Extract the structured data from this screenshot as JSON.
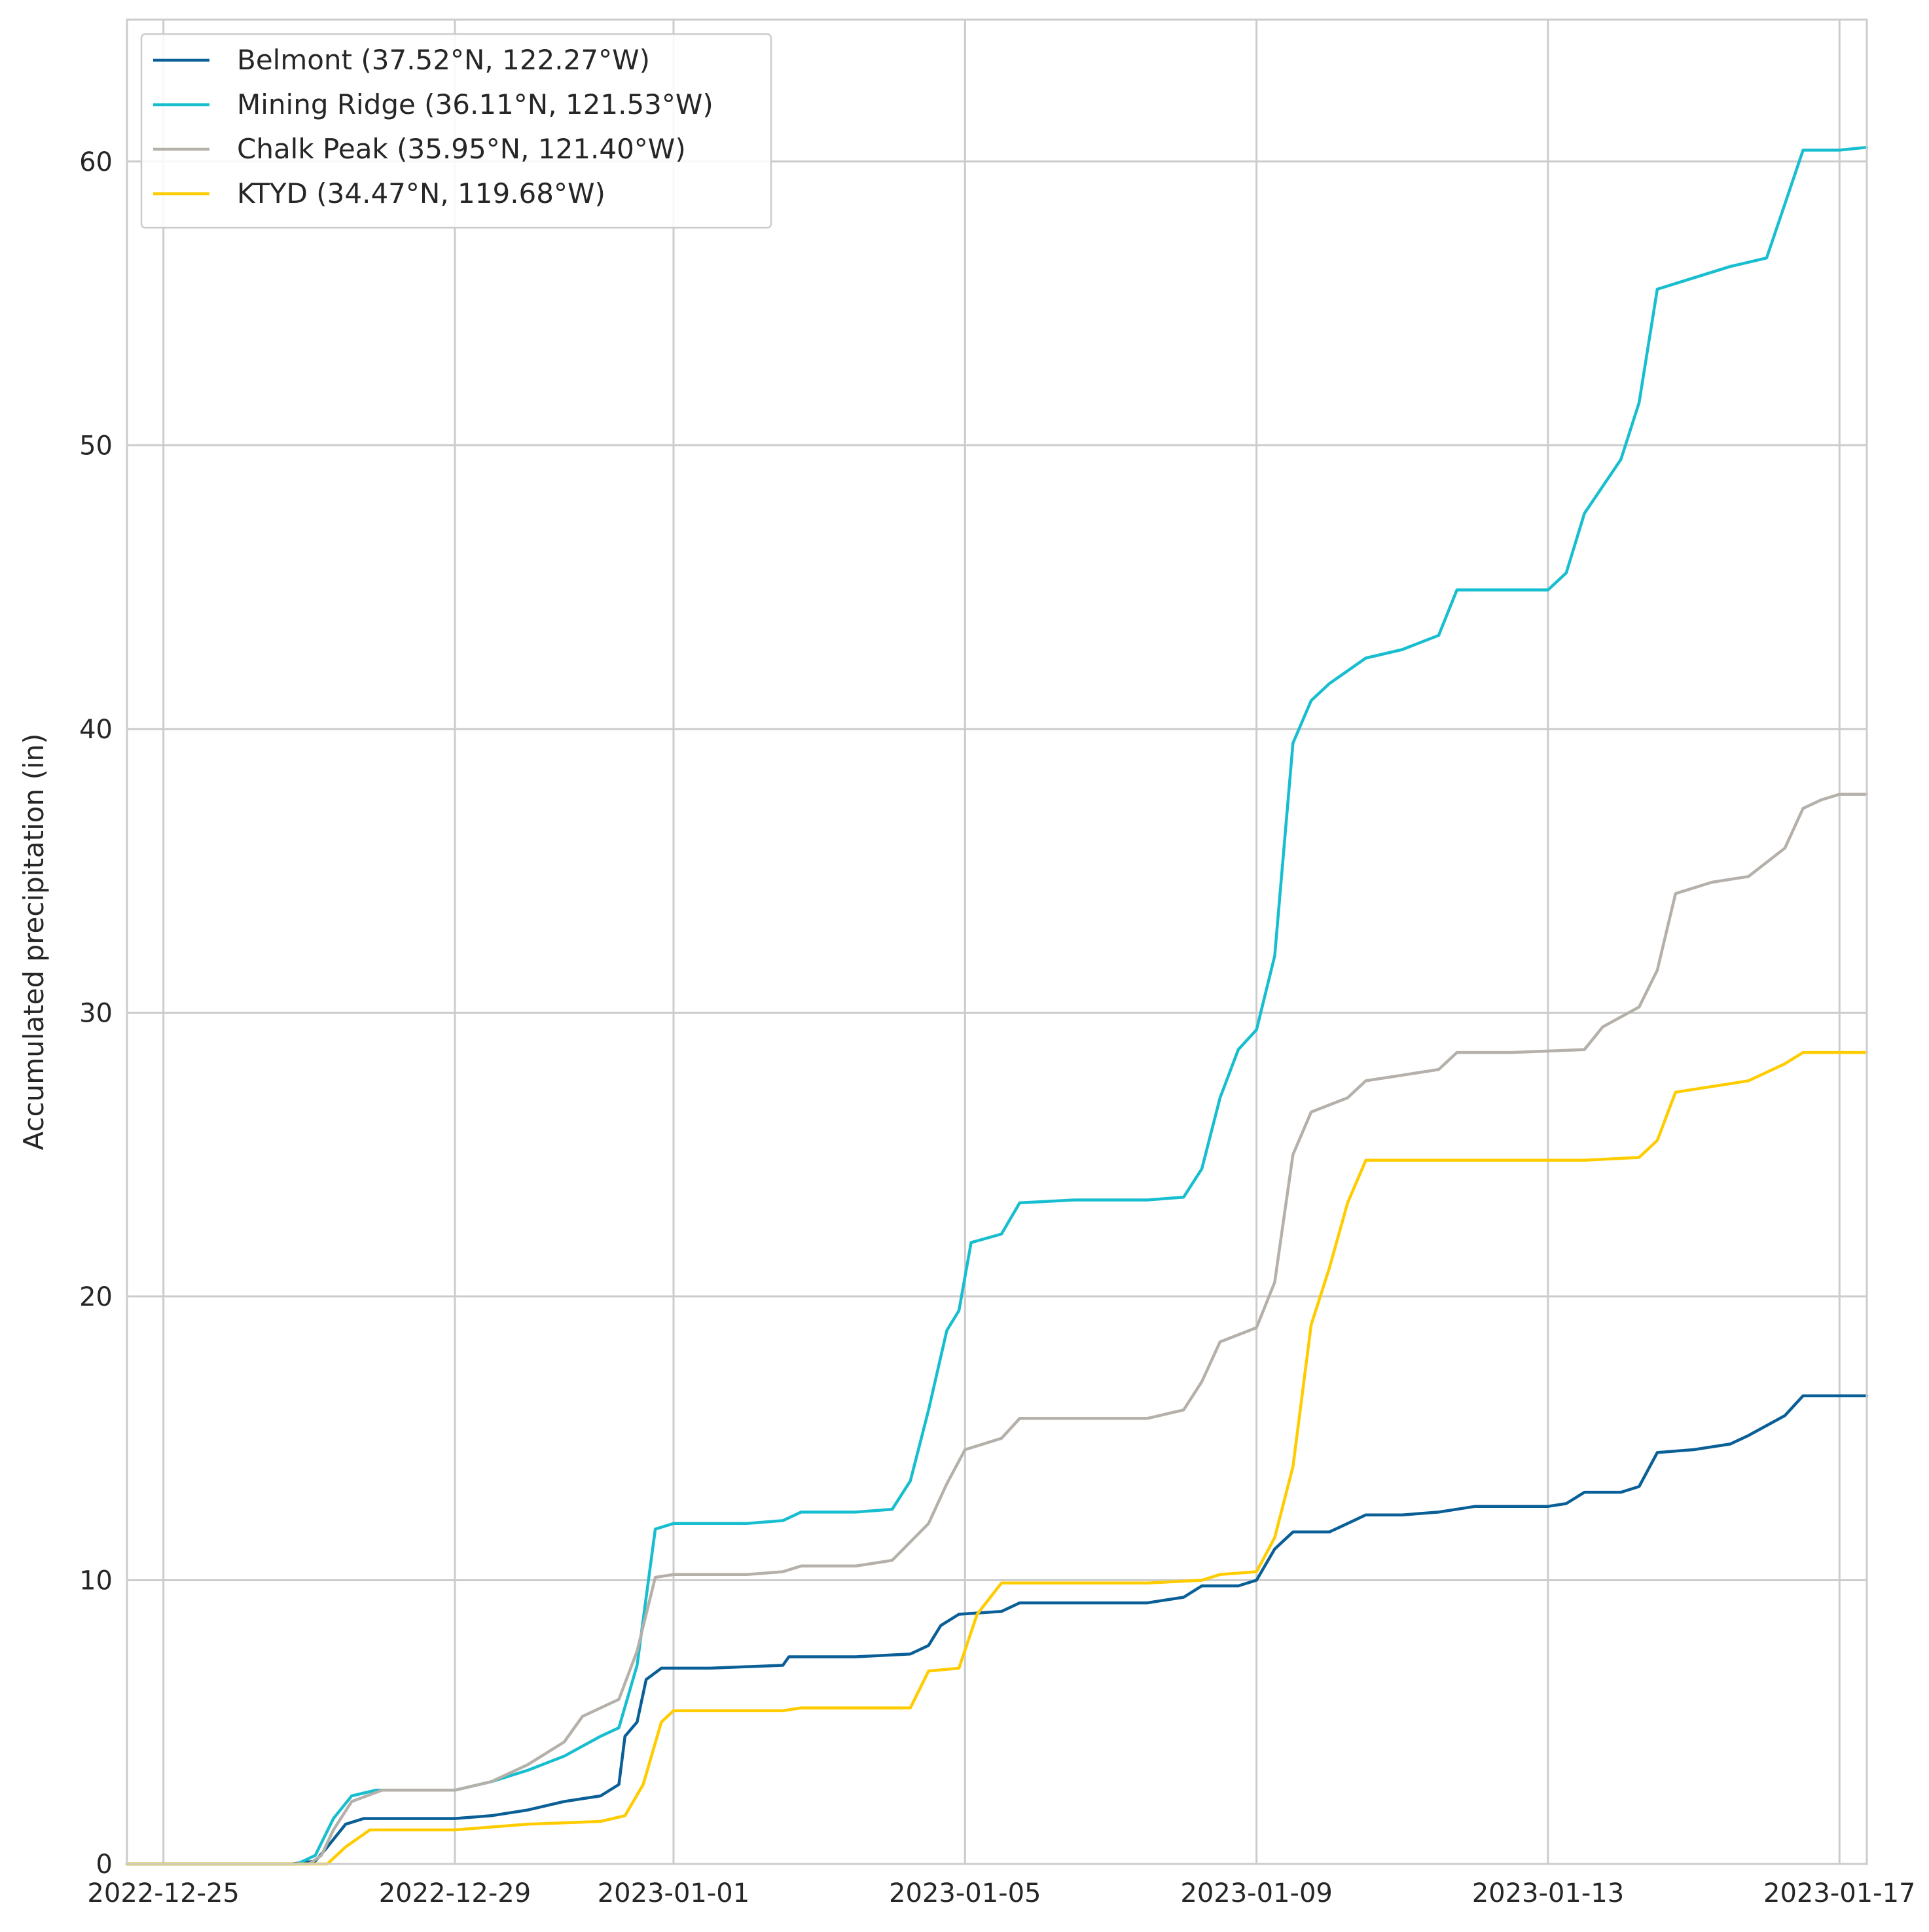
{
  "chart_data": {
    "type": "line",
    "title": "",
    "xlabel": "",
    "ylabel": "Accumulated precipitation (in)",
    "xlim": [
      "2022-12-24T12:00",
      "2023-01-17T09:00"
    ],
    "ylim": [
      0,
      65
    ],
    "grid": true,
    "legend_position": "top-left",
    "x_ticks": [
      "2022-12-25",
      "2022-12-29",
      "2023-01-01",
      "2023-01-05",
      "2023-01-09",
      "2023-01-13",
      "2023-01-17"
    ],
    "y_ticks": [
      0,
      10,
      20,
      30,
      40,
      50,
      60
    ],
    "series": [
      {
        "name": "Belmont (37.52°N, 122.27°W)",
        "color": "#0a5f97",
        "points": [
          [
            "2022-12-24T12:00",
            0
          ],
          [
            "2022-12-26T18:00",
            0
          ],
          [
            "2022-12-27T02:00",
            0.1
          ],
          [
            "2022-12-27T06:00",
            0.6
          ],
          [
            "2022-12-27T12:00",
            1.4
          ],
          [
            "2022-12-27T18:00",
            1.6
          ],
          [
            "2022-12-29T00:00",
            1.6
          ],
          [
            "2022-12-29T12:00",
            1.7
          ],
          [
            "2022-12-30T00:00",
            1.9
          ],
          [
            "2022-12-30T12:00",
            2.2
          ],
          [
            "2022-12-31T00:00",
            2.4
          ],
          [
            "2022-12-31T06:00",
            2.8
          ],
          [
            "2022-12-31T08:00",
            4.5
          ],
          [
            "2022-12-31T12:00",
            5.0
          ],
          [
            "2022-12-31T15:00",
            6.5
          ],
          [
            "2022-12-31T20:00",
            6.9
          ],
          [
            "2023-01-01T12:00",
            6.9
          ],
          [
            "2023-01-02T12:00",
            7.0
          ],
          [
            "2023-01-02T14:00",
            7.3
          ],
          [
            "2023-01-03T12:00",
            7.3
          ],
          [
            "2023-01-04T06:00",
            7.4
          ],
          [
            "2023-01-04T12:00",
            7.7
          ],
          [
            "2023-01-04T16:00",
            8.4
          ],
          [
            "2023-01-04T22:00",
            8.8
          ],
          [
            "2023-01-05T12:00",
            8.9
          ],
          [
            "2023-01-05T18:00",
            9.2
          ],
          [
            "2023-01-06T12:00",
            9.2
          ],
          [
            "2023-01-07T12:00",
            9.2
          ],
          [
            "2023-01-08T00:00",
            9.4
          ],
          [
            "2023-01-08T06:00",
            9.8
          ],
          [
            "2023-01-08T18:00",
            9.8
          ],
          [
            "2023-01-09T00:00",
            10.0
          ],
          [
            "2023-01-09T06:00",
            11.1
          ],
          [
            "2023-01-09T12:00",
            11.7
          ],
          [
            "2023-01-10T00:00",
            11.7
          ],
          [
            "2023-01-10T06:00",
            12.0
          ],
          [
            "2023-01-10T12:00",
            12.3
          ],
          [
            "2023-01-11T00:00",
            12.3
          ],
          [
            "2023-01-11T12:00",
            12.4
          ],
          [
            "2023-01-12T00:00",
            12.6
          ],
          [
            "2023-01-13T00:00",
            12.6
          ],
          [
            "2023-01-13T06:00",
            12.7
          ],
          [
            "2023-01-13T12:00",
            13.1
          ],
          [
            "2023-01-14T00:00",
            13.1
          ],
          [
            "2023-01-14T06:00",
            13.3
          ],
          [
            "2023-01-14T12:00",
            14.5
          ],
          [
            "2023-01-15T00:00",
            14.6
          ],
          [
            "2023-01-15T12:00",
            14.8
          ],
          [
            "2023-01-15T18:00",
            15.1
          ],
          [
            "2023-01-16T06:00",
            15.8
          ],
          [
            "2023-01-16T12:00",
            16.5
          ],
          [
            "2023-01-17T00:00",
            16.5
          ],
          [
            "2023-01-17T09:00",
            16.5
          ]
        ]
      },
      {
        "name": "Mining Ridge (36.11°N, 121.53°W)",
        "color": "#17becf",
        "points": [
          [
            "2022-12-24T12:00",
            0
          ],
          [
            "2022-12-26T20:00",
            0
          ],
          [
            "2022-12-27T02:00",
            0.3
          ],
          [
            "2022-12-27T08:00",
            1.6
          ],
          [
            "2022-12-27T14:00",
            2.4
          ],
          [
            "2022-12-27T22:00",
            2.6
          ],
          [
            "2022-12-29T00:00",
            2.6
          ],
          [
            "2022-12-29T12:00",
            2.9
          ],
          [
            "2022-12-30T00:00",
            3.3
          ],
          [
            "2022-12-30T12:00",
            3.8
          ],
          [
            "2022-12-31T00:00",
            4.5
          ],
          [
            "2022-12-31T06:00",
            4.8
          ],
          [
            "2022-12-31T12:00",
            7.0
          ],
          [
            "2022-12-31T18:00",
            11.8
          ],
          [
            "2023-01-01T00:00",
            12.0
          ],
          [
            "2023-01-02T00:00",
            12.0
          ],
          [
            "2023-01-02T12:00",
            12.1
          ],
          [
            "2023-01-02T18:00",
            12.4
          ],
          [
            "2023-01-03T12:00",
            12.4
          ],
          [
            "2023-01-04T00:00",
            12.5
          ],
          [
            "2023-01-04T06:00",
            13.5
          ],
          [
            "2023-01-04T12:00",
            16.0
          ],
          [
            "2023-01-04T18:00",
            18.8
          ],
          [
            "2023-01-04T22:00",
            19.5
          ],
          [
            "2023-01-05T02:00",
            21.9
          ],
          [
            "2023-01-05T12:00",
            22.2
          ],
          [
            "2023-01-05T18:00",
            23.3
          ],
          [
            "2023-01-06T12:00",
            23.4
          ],
          [
            "2023-01-07T12:00",
            23.4
          ],
          [
            "2023-01-08T00:00",
            23.5
          ],
          [
            "2023-01-08T06:00",
            24.5
          ],
          [
            "2023-01-08T12:00",
            27.0
          ],
          [
            "2023-01-08T18:00",
            28.7
          ],
          [
            "2023-01-09T00:00",
            29.4
          ],
          [
            "2023-01-09T06:00",
            32.0
          ],
          [
            "2023-01-09T12:00",
            39.5
          ],
          [
            "2023-01-09T18:00",
            41.0
          ],
          [
            "2023-01-10T00:00",
            41.6
          ],
          [
            "2023-01-10T12:00",
            42.5
          ],
          [
            "2023-01-11T00:00",
            42.8
          ],
          [
            "2023-01-11T12:00",
            43.3
          ],
          [
            "2023-01-11T18:00",
            44.9
          ],
          [
            "2023-01-12T12:00",
            44.9
          ],
          [
            "2023-01-13T00:00",
            44.9
          ],
          [
            "2023-01-13T06:00",
            45.5
          ],
          [
            "2023-01-13T12:00",
            47.6
          ],
          [
            "2023-01-14T00:00",
            49.5
          ],
          [
            "2023-01-14T06:00",
            51.5
          ],
          [
            "2023-01-14T12:00",
            55.5
          ],
          [
            "2023-01-14T18:00",
            55.7
          ],
          [
            "2023-01-15T12:00",
            56.3
          ],
          [
            "2023-01-16T00:00",
            56.6
          ],
          [
            "2023-01-16T06:00",
            58.5
          ],
          [
            "2023-01-16T12:00",
            60.4
          ],
          [
            "2023-01-17T00:00",
            60.4
          ],
          [
            "2023-01-17T09:00",
            60.5
          ]
        ]
      },
      {
        "name": "Chalk Peak (35.95°N, 121.40°W)",
        "color": "#b5b0a9",
        "points": [
          [
            "2022-12-24T12:00",
            0
          ],
          [
            "2022-12-27T00:00",
            0
          ],
          [
            "2022-12-27T04:00",
            0.3
          ],
          [
            "2022-12-27T08:00",
            1.2
          ],
          [
            "2022-12-27T14:00",
            2.2
          ],
          [
            "2022-12-28T00:00",
            2.6
          ],
          [
            "2022-12-29T00:00",
            2.6
          ],
          [
            "2022-12-29T12:00",
            2.9
          ],
          [
            "2022-12-30T00:00",
            3.5
          ],
          [
            "2022-12-30T12:00",
            4.3
          ],
          [
            "2022-12-30T18:00",
            5.2
          ],
          [
            "2022-12-31T06:00",
            5.8
          ],
          [
            "2022-12-31T12:00",
            7.5
          ],
          [
            "2022-12-31T18:00",
            10.1
          ],
          [
            "2023-01-01T00:00",
            10.2
          ],
          [
            "2023-01-02T00:00",
            10.2
          ],
          [
            "2023-01-02T12:00",
            10.3
          ],
          [
            "2023-01-02T18:00",
            10.5
          ],
          [
            "2023-01-03T12:00",
            10.5
          ],
          [
            "2023-01-04T00:00",
            10.7
          ],
          [
            "2023-01-04T12:00",
            12.0
          ],
          [
            "2023-01-04T18:00",
            13.4
          ],
          [
            "2023-01-05T00:00",
            14.6
          ],
          [
            "2023-01-05T12:00",
            15.0
          ],
          [
            "2023-01-05T18:00",
            15.7
          ],
          [
            "2023-01-06T12:00",
            15.7
          ],
          [
            "2023-01-07T12:00",
            15.7
          ],
          [
            "2023-01-08T00:00",
            16.0
          ],
          [
            "2023-01-08T06:00",
            17.0
          ],
          [
            "2023-01-08T12:00",
            18.4
          ],
          [
            "2023-01-09T00:00",
            18.9
          ],
          [
            "2023-01-09T06:00",
            20.5
          ],
          [
            "2023-01-09T12:00",
            25.0
          ],
          [
            "2023-01-09T18:00",
            26.5
          ],
          [
            "2023-01-10T06:00",
            27.0
          ],
          [
            "2023-01-10T12:00",
            27.6
          ],
          [
            "2023-01-11T00:00",
            27.8
          ],
          [
            "2023-01-11T12:00",
            28.0
          ],
          [
            "2023-01-11T18:00",
            28.6
          ],
          [
            "2023-01-12T12:00",
            28.6
          ],
          [
            "2023-01-13T12:00",
            28.7
          ],
          [
            "2023-01-13T18:00",
            29.5
          ],
          [
            "2023-01-14T06:00",
            30.2
          ],
          [
            "2023-01-14T12:00",
            31.5
          ],
          [
            "2023-01-14T18:00",
            34.2
          ],
          [
            "2023-01-15T06:00",
            34.6
          ],
          [
            "2023-01-15T18:00",
            34.8
          ],
          [
            "2023-01-16T06:00",
            35.8
          ],
          [
            "2023-01-16T12:00",
            37.2
          ],
          [
            "2023-01-16T18:00",
            37.5
          ],
          [
            "2023-01-17T00:00",
            37.7
          ],
          [
            "2023-01-17T09:00",
            37.7
          ]
        ]
      },
      {
        "name": "KTYD (34.47°N, 119.68°W)",
        "color": "#ffcc00",
        "points": [
          [
            "2022-12-24T12:00",
            0
          ],
          [
            "2022-12-27T06:00",
            0
          ],
          [
            "2022-12-27T12:00",
            0.6
          ],
          [
            "2022-12-27T20:00",
            1.2
          ],
          [
            "2022-12-29T00:00",
            1.2
          ],
          [
            "2022-12-29T12:00",
            1.3
          ],
          [
            "2022-12-30T00:00",
            1.4
          ],
          [
            "2022-12-31T00:00",
            1.5
          ],
          [
            "2022-12-31T08:00",
            1.7
          ],
          [
            "2022-12-31T14:00",
            2.8
          ],
          [
            "2022-12-31T20:00",
            5.0
          ],
          [
            "2023-01-01T00:00",
            5.4
          ],
          [
            "2023-01-02T00:00",
            5.4
          ],
          [
            "2023-01-02T12:00",
            5.4
          ],
          [
            "2023-01-02T18:00",
            5.5
          ],
          [
            "2023-01-03T12:00",
            5.5
          ],
          [
            "2023-01-04T06:00",
            5.5
          ],
          [
            "2023-01-04T12:00",
            6.8
          ],
          [
            "2023-01-04T22:00",
            6.9
          ],
          [
            "2023-01-05T04:00",
            8.8
          ],
          [
            "2023-01-05T12:00",
            9.9
          ],
          [
            "2023-01-06T12:00",
            9.9
          ],
          [
            "2023-01-07T12:00",
            9.9
          ],
          [
            "2023-01-08T06:00",
            10.0
          ],
          [
            "2023-01-08T12:00",
            10.2
          ],
          [
            "2023-01-09T00:00",
            10.3
          ],
          [
            "2023-01-09T06:00",
            11.5
          ],
          [
            "2023-01-09T12:00",
            14.0
          ],
          [
            "2023-01-09T18:00",
            19.0
          ],
          [
            "2023-01-10T00:00",
            21.0
          ],
          [
            "2023-01-10T06:00",
            23.3
          ],
          [
            "2023-01-10T12:00",
            24.8
          ],
          [
            "2023-01-11T12:00",
            24.8
          ],
          [
            "2023-01-12T12:00",
            24.8
          ],
          [
            "2023-01-13T12:00",
            24.8
          ],
          [
            "2023-01-14T06:00",
            24.9
          ],
          [
            "2023-01-14T12:00",
            25.5
          ],
          [
            "2023-01-14T18:00",
            27.2
          ],
          [
            "2023-01-15T12:00",
            27.5
          ],
          [
            "2023-01-15T18:00",
            27.6
          ],
          [
            "2023-01-16T06:00",
            28.2
          ],
          [
            "2023-01-16T12:00",
            28.6
          ],
          [
            "2023-01-17T00:00",
            28.6
          ],
          [
            "2023-01-17T09:00",
            28.6
          ]
        ]
      }
    ]
  }
}
